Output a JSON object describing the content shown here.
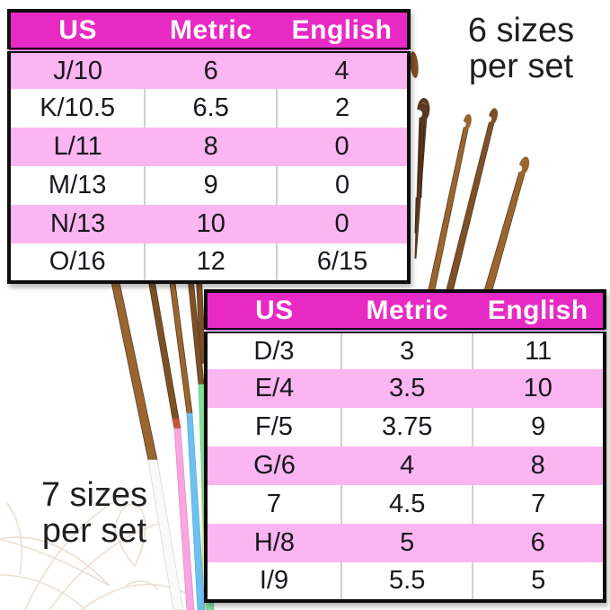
{
  "notes": {
    "top_right": {
      "line1": "6 sizes",
      "line2": "per set"
    },
    "bottom_left": {
      "line1": "7 sizes",
      "line2": "per set"
    }
  },
  "tables": [
    {
      "id": "six-size-set",
      "headers": [
        "US",
        "Metric",
        "English"
      ],
      "pink_first_row": true,
      "rows": [
        [
          "J/10",
          "6",
          "4"
        ],
        [
          "K/10.5",
          "6.5",
          "2"
        ],
        [
          "L/11",
          "8",
          "0"
        ],
        [
          "M/13",
          "9",
          "0"
        ],
        [
          "N/13",
          "10",
          "0"
        ],
        [
          "O/16",
          "12",
          "6/15"
        ]
      ]
    },
    {
      "id": "seven-size-set",
      "headers": [
        "US",
        "Metric",
        "English"
      ],
      "pink_first_row": false,
      "rows": [
        [
          "D/3",
          "3",
          "11"
        ],
        [
          "E/4",
          "3.5",
          "10"
        ],
        [
          "F/5",
          "3.75",
          "9"
        ],
        [
          "G/6",
          "4",
          "8"
        ],
        [
          "7",
          "4.5",
          "7"
        ],
        [
          "H/8",
          "5",
          "6"
        ],
        [
          "I/9",
          "5.5",
          "5"
        ]
      ]
    }
  ],
  "colors": {
    "header_bg": "#E82AC4",
    "header_text": "#FFFFFF",
    "row_pink": "#FBB5F1",
    "row_white": "#FFFFFF",
    "cell_text": "#17171D",
    "table_border": "#0D0D0D",
    "column_divider": "#CFCFCF",
    "note_text": "#1F1F1F",
    "bamboo_light": "#9A6630",
    "bamboo_mid": "#7D5128",
    "bamboo_dark": "#5A3820",
    "handle_white": "#FAFAFA",
    "handle_pink": "#F7A6DF",
    "handle_blue": "#6FC0F0",
    "handle_green": "#7FE39B",
    "handle_yellow": "#EDEE8E",
    "floral_line": "#EADFD2"
  }
}
